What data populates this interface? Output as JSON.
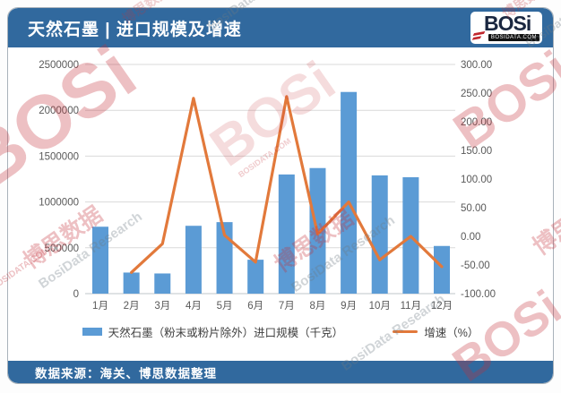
{
  "header": {
    "title": "天然石墨 | 进口规模及增速",
    "logo_text": "BOSi",
    "logo_sub": "BOSIDATA.COM"
  },
  "footer": {
    "source": "数据来源：海关、博思数据整理"
  },
  "legend": {
    "bar_label": "天然石墨（粉末或粉片除外）进口规模（千克）",
    "line_label": "增速（%）"
  },
  "watermark": {
    "bosi": "BOSi",
    "cn": "博思数据",
    "en": "BosiData Research",
    "site": "BOSIDATA.COM"
  },
  "colors": {
    "header_bg": "#31699E",
    "bar": "#5B9BD5",
    "line": "#E2793B",
    "grid": "#D9D9D9",
    "axis_line": "#BFC4C9",
    "axis_text": "#595959",
    "legend_text": "#404040"
  },
  "chart_data": {
    "type": "bar",
    "subtype": "combo bar+line, dual axis",
    "title": "天然石墨 | 进口规模及增速",
    "categories": [
      "1月",
      "2月",
      "3月",
      "4月",
      "5月",
      "6月",
      "7月",
      "8月",
      "9月",
      "10月",
      "11月",
      "12月"
    ],
    "series": [
      {
        "name": "天然石墨（粉末或粉片除外）进口规模（千克）",
        "type": "bar",
        "axis": "left",
        "values": [
          730000,
          230000,
          220000,
          740000,
          780000,
          370000,
          1300000,
          1370000,
          2200000,
          1290000,
          1270000,
          520000
        ]
      },
      {
        "name": "增速（%）",
        "type": "line",
        "axis": "right",
        "values": [
          null,
          -63,
          -13,
          241,
          2,
          -45,
          244,
          4,
          60,
          -41,
          0,
          -53
        ]
      }
    ],
    "left_axis": {
      "min": 0,
      "max": 2500000,
      "step": 500000,
      "tick_labels": [
        "0",
        "500000",
        "1000000",
        "1500000",
        "2000000",
        "2500000"
      ]
    },
    "right_axis": {
      "min": -100,
      "max": 300,
      "step": 50,
      "tick_labels": [
        "-100.00",
        "-50.00",
        "0.00",
        "50.00",
        "100.00",
        "150.00",
        "200.00",
        "250.00",
        "300.00"
      ]
    },
    "grid": true,
    "legend_position": "bottom"
  }
}
